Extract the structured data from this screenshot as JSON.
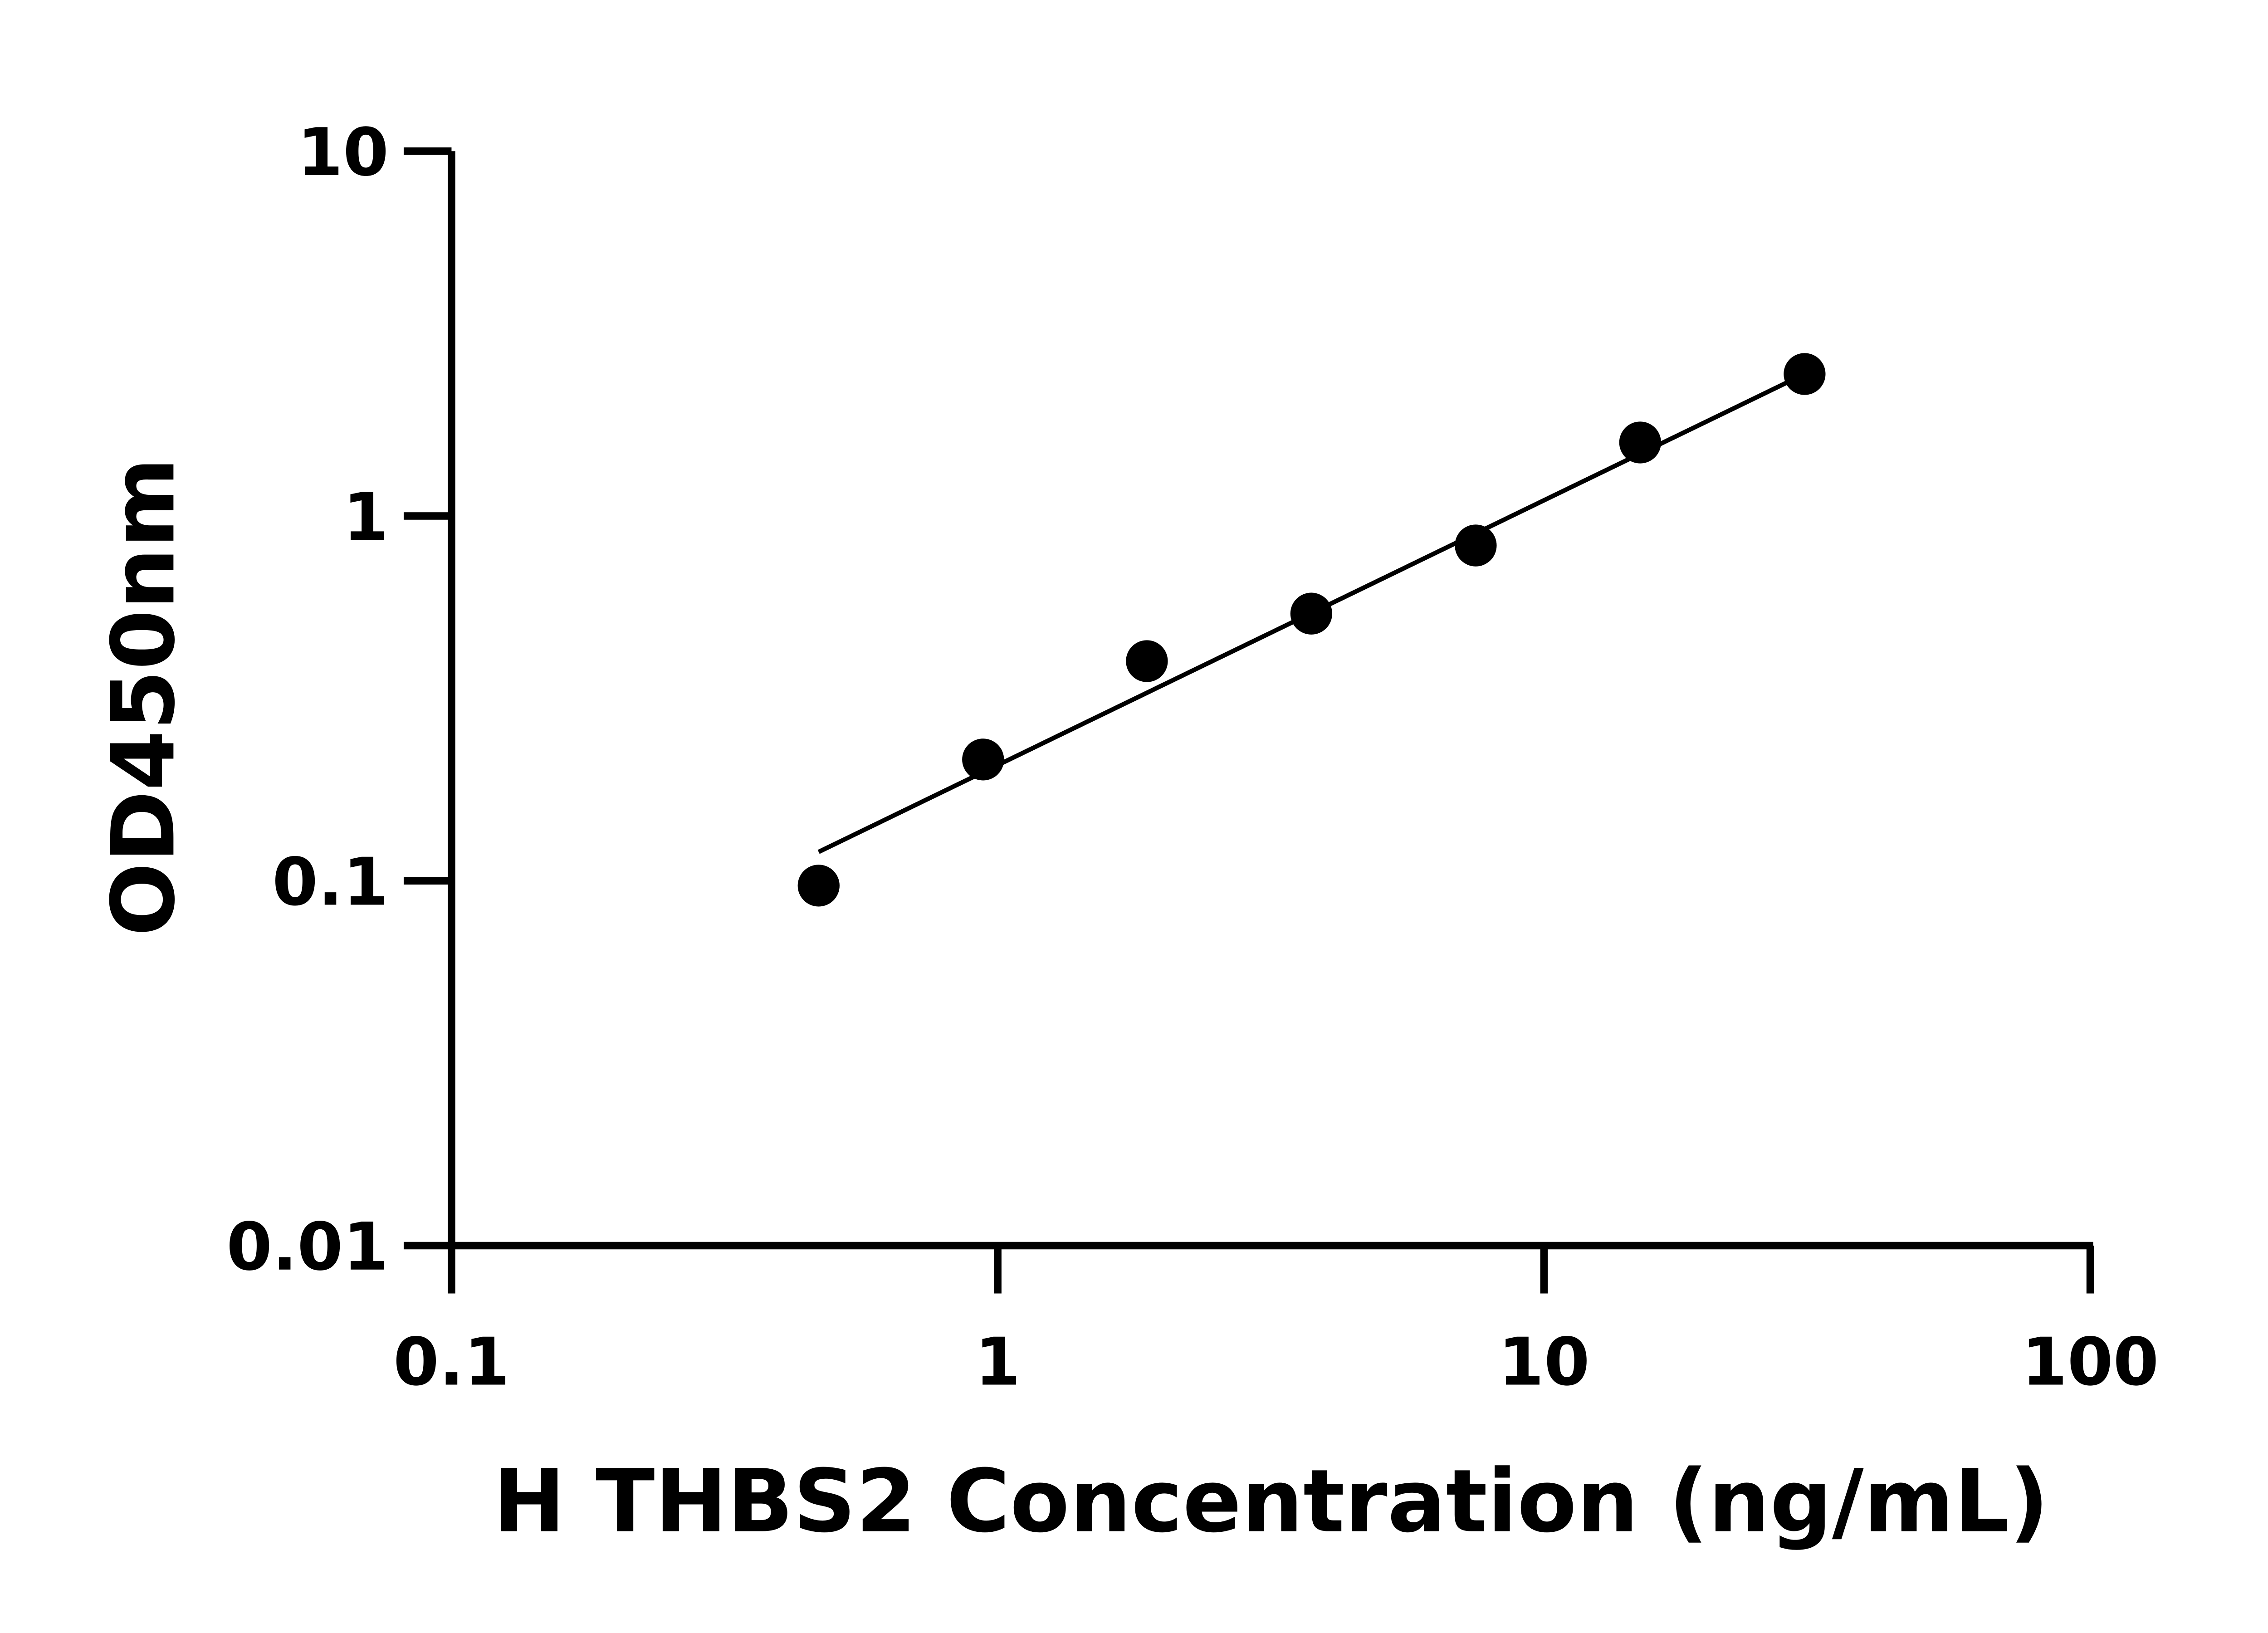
{
  "chart_data": {
    "type": "scatter",
    "title": "",
    "xlabel": "H THBS2 Concentration (ng/mL)",
    "ylabel": "OD450nm",
    "xscale": "log",
    "yscale": "log",
    "xlim": [
      0.1,
      100
    ],
    "ylim": [
      0.01,
      10
    ],
    "xticks": [
      "0.1",
      "1",
      "10",
      "100"
    ],
    "yticks": [
      "0.01",
      "0.1",
      "1",
      "10"
    ],
    "grid": false,
    "legend": "none",
    "colors": {
      "points": "#000000",
      "axes": "#000000",
      "fit": "#000000"
    },
    "series": [
      {
        "x": [
          0.47,
          0.94,
          1.875,
          3.75,
          7.5,
          15,
          30
        ],
        "y": [
          0.097,
          0.215,
          0.4,
          0.54,
          0.83,
          1.59,
          2.45
        ]
      }
    ],
    "fit_line": {
      "x": [
        0.47,
        30
      ],
      "y": [
        0.12,
        2.45
      ]
    }
  }
}
